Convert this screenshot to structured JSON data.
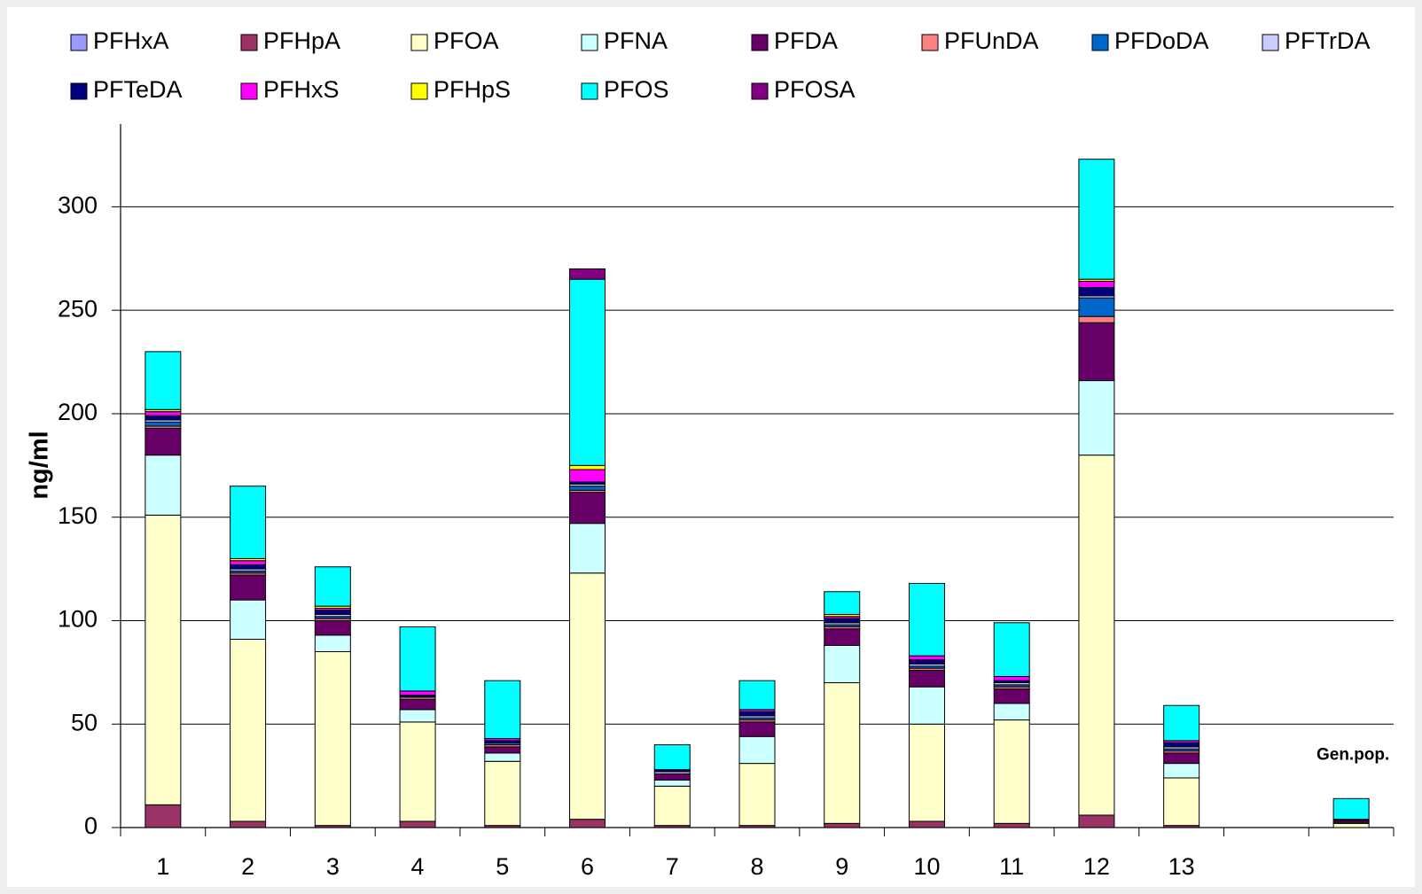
{
  "chart_data": {
    "type": "stacked_bar",
    "y_label": "ng/ml",
    "annotation": "Gen.pop.",
    "categories": [
      "1",
      "2",
      "3",
      "4",
      "5",
      "6",
      "7",
      "8",
      "9",
      "10",
      "11",
      "12",
      "13",
      null,
      null
    ],
    "ylim": [
      0,
      340
    ],
    "yticks": [
      0,
      50,
      100,
      150,
      200,
      250,
      300
    ],
    "grid": true,
    "series": [
      {
        "name": "PFHxA",
        "color": "#9999ff",
        "values": [
          0,
          0,
          0,
          0,
          0,
          0,
          0,
          0,
          0,
          0,
          0,
          0,
          0,
          null,
          0
        ]
      },
      {
        "name": "PFHpA",
        "color": "#993366",
        "values": [
          11,
          3,
          1,
          3,
          1,
          4,
          1,
          1,
          2,
          3,
          2,
          6,
          1,
          null,
          0
        ]
      },
      {
        "name": "PFOA",
        "color": "#ffffcc",
        "values": [
          140,
          88,
          84,
          48,
          31,
          119,
          19,
          30,
          68,
          47,
          50,
          174,
          23,
          null,
          2
        ]
      },
      {
        "name": "PFNA",
        "color": "#ccffff",
        "values": [
          29,
          19,
          8,
          6,
          4,
          24,
          3,
          13,
          18,
          18,
          8,
          36,
          7,
          null,
          0.5
        ]
      },
      {
        "name": "PFDA",
        "color": "#660066",
        "values": [
          13,
          12,
          7,
          5,
          3,
          15,
          3,
          7,
          8,
          8,
          7,
          28,
          5,
          null,
          1
        ]
      },
      {
        "name": "PFUnDA",
        "color": "#ff8080",
        "values": [
          1,
          1,
          1,
          1,
          1,
          1,
          0,
          1,
          1,
          1,
          1,
          3,
          1,
          null,
          0
        ]
      },
      {
        "name": "PFDoDA",
        "color": "#0066cc",
        "values": [
          2,
          1,
          1,
          0,
          1,
          2,
          0,
          1,
          1,
          1,
          1,
          9,
          1,
          null,
          0
        ]
      },
      {
        "name": "PFTrDA",
        "color": "#ccccff",
        "values": [
          1,
          1,
          1,
          0,
          0,
          1,
          1,
          1,
          1,
          1,
          1,
          1,
          1,
          null,
          0
        ]
      },
      {
        "name": "PFTeDA",
        "color": "#000080",
        "values": [
          2,
          2,
          2,
          1,
          1,
          1,
          1,
          2,
          2,
          2,
          1,
          4,
          2,
          null,
          0.5
        ]
      },
      {
        "name": "PFHxS",
        "color": "#ff00ff",
        "values": [
          2,
          2,
          1,
          2,
          1,
          6,
          0,
          1,
          1,
          2,
          2,
          3,
          1,
          null,
          0
        ]
      },
      {
        "name": "PFHpS",
        "color": "#ffff00",
        "values": [
          1,
          1,
          1,
          0,
          0,
          2,
          0,
          0,
          1,
          0,
          0,
          1,
          0,
          null,
          0
        ]
      },
      {
        "name": "PFOS",
        "color": "#00ffff",
        "values": [
          28,
          35,
          19,
          31,
          28,
          90,
          12,
          14,
          11,
          35,
          26,
          58,
          17,
          null,
          10
        ]
      },
      {
        "name": "PFOSA",
        "color": "#800080",
        "values": [
          0,
          0,
          0,
          0,
          0,
          5,
          0,
          0,
          0,
          0,
          0,
          0,
          0,
          null,
          0
        ]
      }
    ]
  }
}
